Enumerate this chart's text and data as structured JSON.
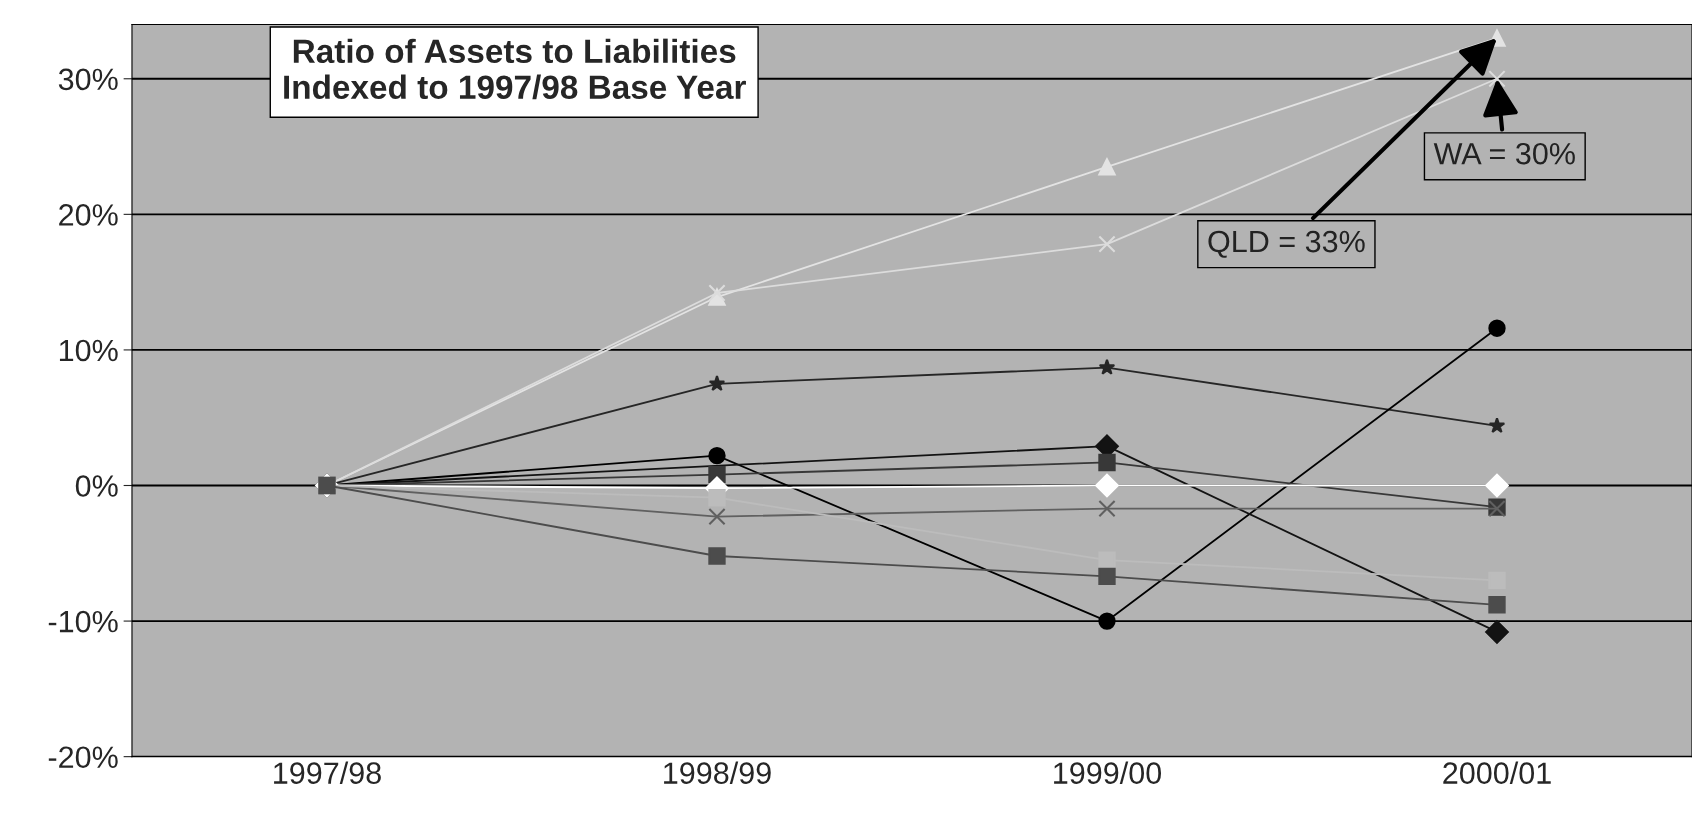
{
  "chart_data": {
    "type": "line",
    "title": "Ratio of Assets to Liabilities\nIndexed to 1997/98 Base Year",
    "categories": [
      "1997/98",
      "1998/99",
      "1999/00",
      "2000/01"
    ],
    "series": [
      {
        "color": "#e3e3e3",
        "marker": "triangle",
        "values": [
          0,
          13.9,
          23.5,
          33
        ]
      },
      {
        "color": "#dcdcdc",
        "marker": "cross",
        "values": [
          0,
          14.2,
          17.8,
          30
        ]
      },
      {
        "color": "#262626",
        "marker": "star",
        "values": [
          0,
          7.5,
          8.7,
          4.4
        ]
      },
      {
        "color": "#000000",
        "marker": "circle",
        "values": [
          0,
          2.2,
          -10,
          11.6
        ]
      },
      {
        "color": "#131313",
        "marker": "diamond",
        "values": [
          0,
          null,
          2.9,
          -10.8
        ]
      },
      {
        "color": "#383838",
        "marker": "square",
        "values": [
          0,
          0.8,
          1.7,
          -1.6
        ]
      },
      {
        "color": "#ffffff",
        "marker": "diamond",
        "values": [
          0,
          -0.2,
          0,
          0
        ]
      },
      {
        "color": "#606060",
        "marker": "cross",
        "values": [
          0,
          -2.3,
          -1.7,
          -1.7
        ]
      },
      {
        "color": "#bcbcbc",
        "marker": "square",
        "values": [
          0,
          -0.9,
          -5.5,
          -7
        ]
      },
      {
        "color": "#4c4c4c",
        "marker": "square",
        "values": [
          0,
          -5.2,
          -6.7,
          -8.8
        ]
      }
    ],
    "ylim": [
      -20,
      34
    ],
    "yticks": [
      {
        "value": -20,
        "label": "-20%"
      },
      {
        "value": -10,
        "label": "-10%"
      },
      {
        "value": 0,
        "label": "0%"
      },
      {
        "value": 10,
        "label": "10%"
      },
      {
        "value": 20,
        "label": "20%"
      },
      {
        "value": 30,
        "label": "30%"
      }
    ],
    "grid": "y",
    "legend": false,
    "annotations": [
      {
        "text": "QLD = 33%",
        "x": "2000/01",
        "y": 33
      },
      {
        "text": "WA = 30%",
        "x": "2000/01",
        "y": 30
      }
    ]
  }
}
